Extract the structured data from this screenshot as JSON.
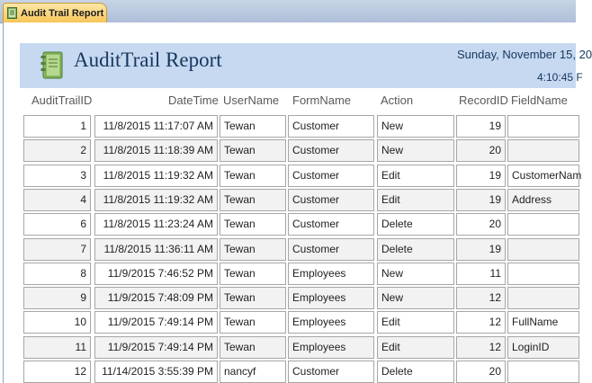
{
  "tab": {
    "label": "Audit Trail Report"
  },
  "report": {
    "title": "AuditTrail Report",
    "date": "Sunday, November 15, 20",
    "time": "4:10:45 F"
  },
  "columns": [
    "AuditTrailID",
    "DateTime",
    "UserName",
    "FormName",
    "Action",
    "RecordID",
    "FieldName"
  ],
  "rows": [
    {
      "id": "1",
      "datetime": "11/8/2015 11:17:07 AM",
      "user": "Tewan",
      "form": "Customer",
      "action": "New",
      "record": "19",
      "field": ""
    },
    {
      "id": "2",
      "datetime": "11/8/2015 11:18:39 AM",
      "user": "Tewan",
      "form": "Customer",
      "action": "New",
      "record": "20",
      "field": ""
    },
    {
      "id": "3",
      "datetime": "11/8/2015 11:19:32 AM",
      "user": "Tewan",
      "form": "Customer",
      "action": "Edit",
      "record": "19",
      "field": "CustomerNam"
    },
    {
      "id": "4",
      "datetime": "11/8/2015 11:19:32 AM",
      "user": "Tewan",
      "form": "Customer",
      "action": "Edit",
      "record": "19",
      "field": "Address"
    },
    {
      "id": "6",
      "datetime": "11/8/2015 11:23:24 AM",
      "user": "Tewan",
      "form": "Customer",
      "action": "Delete",
      "record": "20",
      "field": ""
    },
    {
      "id": "7",
      "datetime": "11/8/2015 11:36:11 AM",
      "user": "Tewan",
      "form": "Customer",
      "action": "Delete",
      "record": "19",
      "field": ""
    },
    {
      "id": "8",
      "datetime": "11/9/2015 7:46:52 PM",
      "user": "Tewan",
      "form": "Employees",
      "action": "New",
      "record": "11",
      "field": ""
    },
    {
      "id": "9",
      "datetime": "11/9/2015 7:48:09 PM",
      "user": "Tewan",
      "form": "Employees",
      "action": "New",
      "record": "12",
      "field": ""
    },
    {
      "id": "10",
      "datetime": "11/9/2015 7:49:14 PM",
      "user": "Tewan",
      "form": "Employees",
      "action": "Edit",
      "record": "12",
      "field": "FullName"
    },
    {
      "id": "11",
      "datetime": "11/9/2015 7:49:14 PM",
      "user": "Tewan",
      "form": "Employees",
      "action": "Edit",
      "record": "12",
      "field": "LoginID"
    },
    {
      "id": "12",
      "datetime": "11/14/2015 3:55:39 PM",
      "user": "nancyf",
      "form": "Customer",
      "action": "Delete",
      "record": "20",
      "field": ""
    }
  ]
}
